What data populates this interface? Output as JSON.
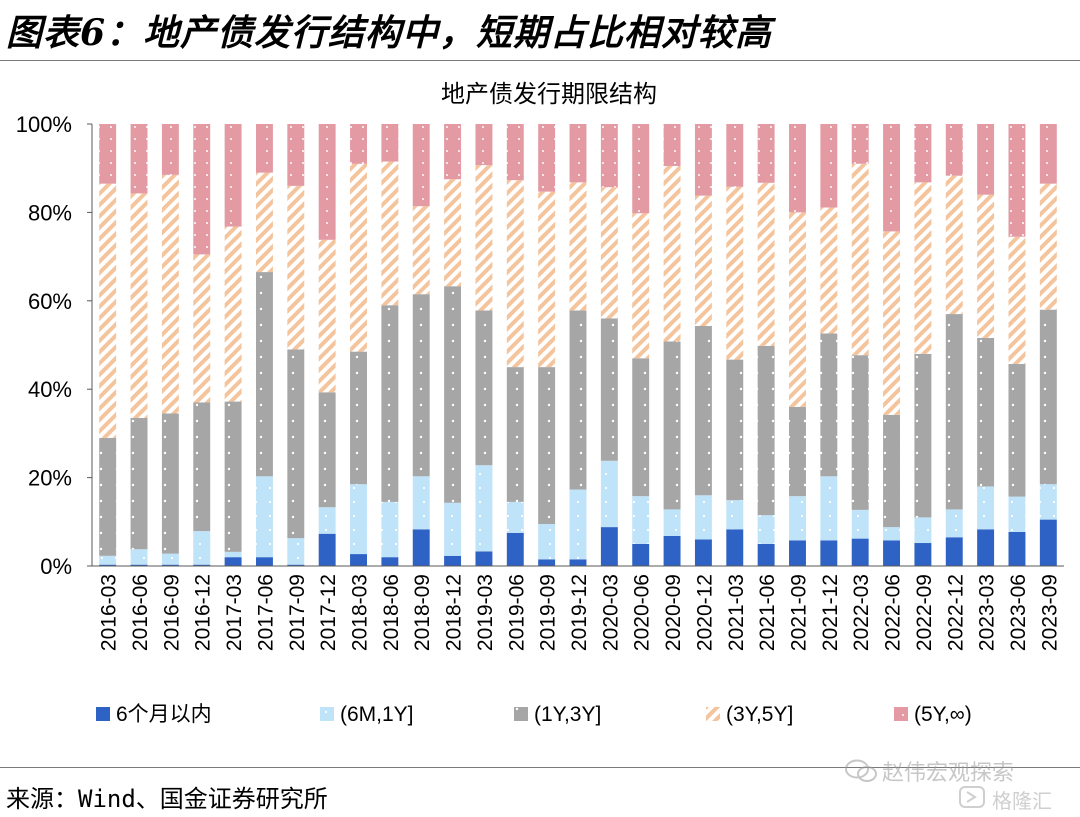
{
  "page": {
    "title": "图表6：地产债发行结构中，短期占比相对较高",
    "source": "来源：Wind、国金证券研究所",
    "watermark_author": "赵伟宏观探索",
    "watermark_brand": "格隆汇"
  },
  "chart_data": {
    "type": "bar",
    "stacked": true,
    "title": "地产债发行期限结构",
    "xlabel": "",
    "ylabel": "",
    "ylim": [
      0,
      100
    ],
    "y_ticks": [
      "0%",
      "20%",
      "40%",
      "60%",
      "80%",
      "100%"
    ],
    "grid": false,
    "legend_position": "bottom",
    "categories": [
      "2016-03",
      "2016-06",
      "2016-09",
      "2016-12",
      "2017-03",
      "2017-06",
      "2017-09",
      "2017-12",
      "2018-03",
      "2018-06",
      "2018-09",
      "2018-12",
      "2019-03",
      "2019-06",
      "2019-09",
      "2019-12",
      "2020-03",
      "2020-06",
      "2020-09",
      "2020-12",
      "2021-03",
      "2021-06",
      "2021-09",
      "2021-12",
      "2022-03",
      "2022-06",
      "2022-09",
      "2022-12",
      "2023-03",
      "2023-06",
      "2023-09"
    ],
    "series": [
      {
        "name": "6个月以内",
        "color": "#2f62c5",
        "pattern": "solid",
        "values": [
          0.3,
          0.3,
          0.3,
          0.3,
          2,
          2,
          0.3,
          7.3,
          2.7,
          2,
          8.3,
          2.3,
          3.3,
          7.5,
          1.5,
          1.5,
          8.8,
          5,
          6.8,
          6,
          8.3,
          5,
          5.8,
          5.8,
          6.2,
          5.8,
          5.2,
          6.5,
          8.3,
          7.7,
          10.5
        ]
      },
      {
        "name": "(6M,1Y]",
        "color": "#bfe3f8",
        "pattern": "sparse-dots",
        "values": [
          2,
          3.5,
          2.5,
          7.6,
          1.2,
          18.3,
          6,
          6,
          15.8,
          12.5,
          12,
          12,
          19.5,
          7,
          8,
          15.8,
          15,
          10.8,
          6,
          10,
          6.6,
          6.5,
          10,
          14.5,
          6.5,
          3,
          5.8,
          6.3,
          9.7,
          8,
          8
        ]
      },
      {
        "name": "(1Y,3Y]",
        "color": "#a6a6a6",
        "pattern": "sparse-dots",
        "values": [
          26.7,
          29.7,
          31.7,
          29.1,
          34,
          46.2,
          42.7,
          26,
          30,
          44.5,
          41.2,
          49,
          35,
          30.5,
          35.5,
          40.5,
          32.2,
          31.2,
          38,
          38.3,
          31.8,
          38.3,
          20.2,
          32.3,
          35,
          25.4,
          37,
          44.2,
          33.6,
          30,
          39.5
        ]
      },
      {
        "name": "(3Y,5Y]",
        "color": "#f6cfae",
        "pattern": "diagonal",
        "values": [
          57.5,
          50.8,
          54,
          33.5,
          39.6,
          22.5,
          37,
          34.5,
          42.5,
          32.5,
          19.9,
          24.2,
          32.9,
          42.3,
          39.7,
          29,
          29.7,
          32.8,
          39.7,
          29.5,
          39.1,
          36.9,
          44,
          28.5,
          43.3,
          41.5,
          38.8,
          31.3,
          32.4,
          28.8,
          28.5
        ]
      },
      {
        "name": "(5Y,∞)",
        "color": "#e39aa3",
        "pattern": "dense-dots",
        "values": [
          13.5,
          15.7,
          11.5,
          29.5,
          23.2,
          11,
          14,
          26.2,
          9,
          8.5,
          18.6,
          12.5,
          9.3,
          12.7,
          15.3,
          13.2,
          14.3,
          20.2,
          9.5,
          16.2,
          14.2,
          13.3,
          20,
          18.9,
          9,
          24.3,
          13.2,
          11.7,
          16,
          25.5,
          13.5
        ]
      }
    ]
  }
}
